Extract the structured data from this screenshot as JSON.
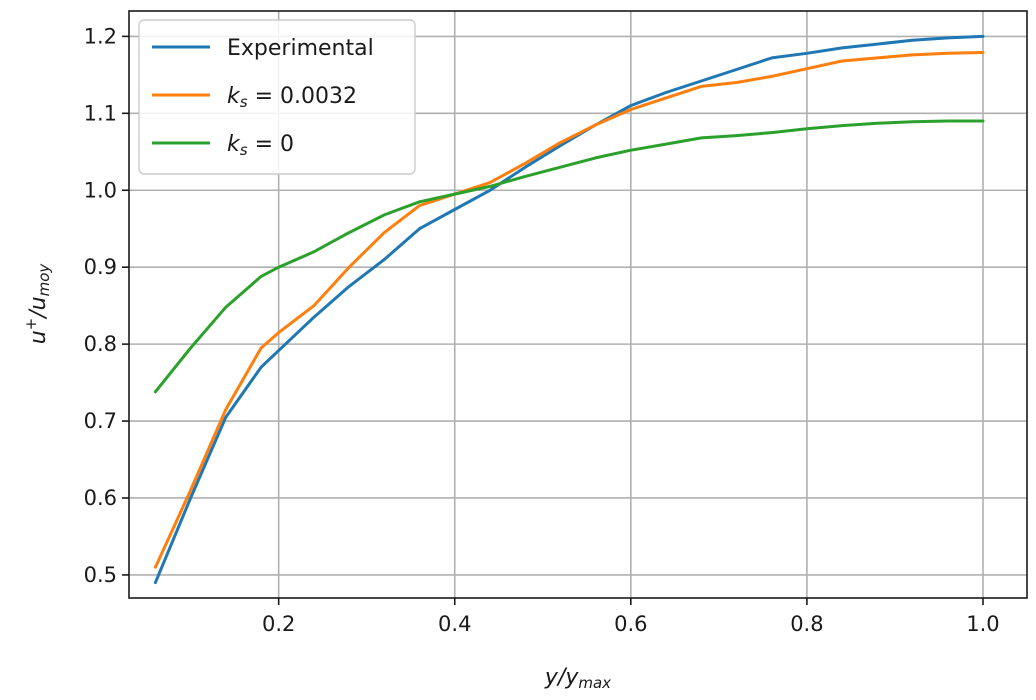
{
  "chart_data": {
    "type": "line",
    "xlabel": {
      "base": "y/y",
      "sub": "max"
    },
    "ylabel": {
      "base": "u",
      "sup": "+",
      "mid": "/u",
      "sub": "moy"
    },
    "xlim": [
      0.03,
      1.05
    ],
    "ylim": [
      0.47,
      1.233
    ],
    "xticks": [
      0.2,
      0.4,
      0.6,
      0.8,
      1.0
    ],
    "xtick_labels": [
      "0.2",
      "0.4",
      "0.6",
      "0.8",
      "1.0"
    ],
    "yticks": [
      0.5,
      0.6,
      0.7,
      0.8,
      0.9,
      1.0,
      1.1,
      1.2
    ],
    "ytick_labels": [
      "0.5",
      "0.6",
      "0.7",
      "0.8",
      "0.9",
      "1.0",
      "1.1",
      "1.2"
    ],
    "grid": true,
    "legend_position": "top-left",
    "series": [
      {
        "name": "Experimental",
        "legend": {
          "text": "Experimental"
        },
        "color": "#1f77b4",
        "x": [
          0.06,
          0.1,
          0.14,
          0.18,
          0.24,
          0.28,
          0.32,
          0.36,
          0.4,
          0.44,
          0.48,
          0.52,
          0.56,
          0.6,
          0.64,
          0.68,
          0.72,
          0.76,
          0.8,
          0.84,
          0.88,
          0.92,
          0.96,
          1.0
        ],
        "y": [
          0.49,
          0.6,
          0.705,
          0.77,
          0.835,
          0.875,
          0.91,
          0.95,
          0.975,
          1.0,
          1.03,
          1.058,
          1.085,
          1.11,
          1.127,
          1.142,
          1.157,
          1.172,
          1.178,
          1.185,
          1.19,
          1.195,
          1.198,
          1.2
        ]
      },
      {
        "name": "k_s = 0.0032",
        "legend": {
          "base": "k",
          "sub": "s",
          "rest": " = 0.0032"
        },
        "color": "#ff7f0e",
        "x": [
          0.06,
          0.1,
          0.14,
          0.18,
          0.2,
          0.24,
          0.28,
          0.32,
          0.36,
          0.4,
          0.44,
          0.48,
          0.52,
          0.56,
          0.6,
          0.64,
          0.68,
          0.72,
          0.76,
          0.8,
          0.84,
          0.88,
          0.92,
          0.96,
          1.0
        ],
        "y": [
          0.51,
          0.61,
          0.715,
          0.795,
          0.815,
          0.85,
          0.9,
          0.945,
          0.98,
          0.995,
          1.01,
          1.035,
          1.062,
          1.085,
          1.105,
          1.12,
          1.135,
          1.14,
          1.148,
          1.158,
          1.168,
          1.172,
          1.176,
          1.178,
          1.179
        ]
      },
      {
        "name": "k_s = 0",
        "legend": {
          "base": "k",
          "sub": "s",
          "rest": " = 0"
        },
        "color": "#2ca02c",
        "x": [
          0.06,
          0.1,
          0.14,
          0.18,
          0.2,
          0.24,
          0.28,
          0.32,
          0.36,
          0.4,
          0.44,
          0.48,
          0.52,
          0.56,
          0.6,
          0.64,
          0.68,
          0.72,
          0.76,
          0.8,
          0.84,
          0.88,
          0.92,
          0.96,
          1.0
        ],
        "y": [
          0.738,
          0.795,
          0.848,
          0.888,
          0.9,
          0.92,
          0.945,
          0.968,
          0.985,
          0.995,
          1.005,
          1.018,
          1.03,
          1.042,
          1.052,
          1.06,
          1.068,
          1.071,
          1.075,
          1.08,
          1.084,
          1.087,
          1.089,
          1.09,
          1.09
        ]
      }
    ]
  }
}
